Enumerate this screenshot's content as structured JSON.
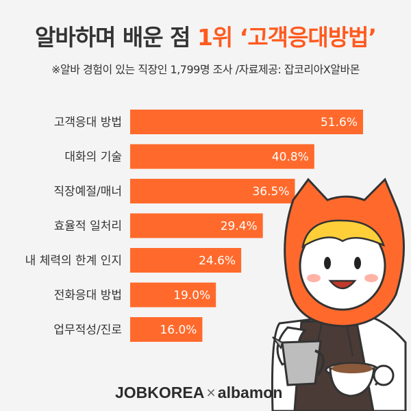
{
  "header": {
    "title_part1": "알바하며 배운 점",
    "title_part2": "1위 ‘고객응대방법’",
    "subtitle": "※알바 경험이 있는 직장인 1,799명 조사 /자료제공: 잡코리아X알바몬"
  },
  "chart_data": {
    "type": "bar",
    "orientation": "horizontal",
    "categories": [
      "고객응대 방법",
      "대화의 기술",
      "직장예절/매너",
      "효율적 일처리",
      "내 체력의 한계 인지",
      "전화응대 방법",
      "업무적성/진로"
    ],
    "values": [
      51.6,
      40.8,
      36.5,
      29.4,
      24.6,
      19.0,
      16.0
    ],
    "value_labels": [
      "51.6%",
      "40.8%",
      "36.5%",
      "29.4%",
      "24.6%",
      "19.0%",
      "16.0%"
    ],
    "bar_color": "#ff6a2c",
    "grid": false,
    "legend": "none"
  },
  "footer": {
    "brand_left": "JOBKOREA",
    "separator": "×",
    "brand_right": "albamon"
  },
  "colors": {
    "background": "#f4f4f4",
    "accent": "#ff5a1f",
    "text": "#333333"
  }
}
